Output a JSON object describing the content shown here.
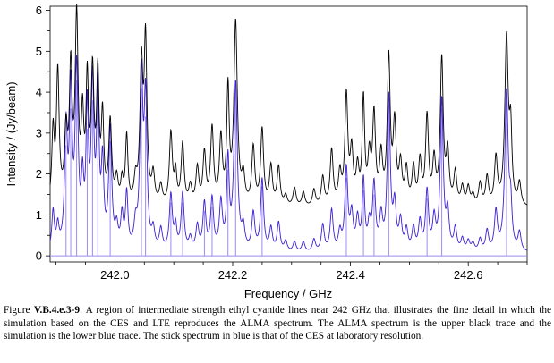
{
  "chart_data": {
    "type": "line",
    "xlabel": "Frequency / GHz",
    "ylabel": "Intensity / (Jy/beam)",
    "xlim": [
      241.89,
      242.7
    ],
    "ylim": [
      -0.15,
      6.1
    ],
    "x_ticks": [
      242.0,
      242.2,
      242.4,
      242.6
    ],
    "x_tick_labels": [
      "242.0",
      "242.2",
      "242.4",
      "242.6"
    ],
    "y_ticks": [
      0,
      1,
      2,
      3,
      4,
      5,
      6
    ],
    "y_tick_labels": [
      "0",
      "1",
      "2",
      "3",
      "4",
      "5",
      "6"
    ],
    "grid": false,
    "colors": {
      "observed": "#000000",
      "simulation": "#3a1fd6",
      "sticks": "#9b8cf2"
    },
    "series": [
      {
        "key": "observed",
        "baseline": 1.15,
        "peaks": [
          [
            241.895,
            2.9,
            0.0025
          ],
          [
            241.903,
            4.35,
            0.0028
          ],
          [
            241.917,
            2.8,
            0.003
          ],
          [
            241.925,
            4.3,
            0.0028
          ],
          [
            241.935,
            5.6,
            0.003
          ],
          [
            241.945,
            3.1,
            0.0025
          ],
          [
            241.953,
            4.0,
            0.0025
          ],
          [
            241.962,
            4.25,
            0.003
          ],
          [
            241.971,
            4.15,
            0.0025
          ],
          [
            241.979,
            3.2,
            0.0025
          ],
          [
            241.992,
            3.15,
            0.003
          ],
          [
            242.003,
            1.75,
            0.003
          ],
          [
            242.012,
            1.7,
            0.0025
          ],
          [
            242.02,
            2.8,
            0.0025
          ],
          [
            242.035,
            1.7,
            0.003
          ],
          [
            242.045,
            4.45,
            0.003
          ],
          [
            242.052,
            5.05,
            0.0028
          ],
          [
            242.065,
            1.85,
            0.003
          ],
          [
            242.078,
            1.6,
            0.003
          ],
          [
            242.095,
            2.9,
            0.003
          ],
          [
            242.103,
            1.9,
            0.0025
          ],
          [
            242.115,
            2.65,
            0.003
          ],
          [
            242.128,
            1.6,
            0.003
          ],
          [
            242.14,
            2.05,
            0.003
          ],
          [
            242.152,
            2.4,
            0.003
          ],
          [
            242.165,
            3.0,
            0.003
          ],
          [
            242.18,
            2.75,
            0.003
          ],
          [
            242.192,
            3.9,
            0.0025
          ],
          [
            242.205,
            5.6,
            0.0035
          ],
          [
            242.218,
            1.8,
            0.003
          ],
          [
            242.235,
            2.55,
            0.003
          ],
          [
            242.25,
            3.0,
            0.003
          ],
          [
            242.265,
            2.1,
            0.003
          ],
          [
            242.278,
            2.1,
            0.003
          ],
          [
            242.29,
            1.4,
            0.003
          ],
          [
            242.305,
            1.6,
            0.003
          ],
          [
            242.32,
            1.5,
            0.003
          ],
          [
            242.338,
            1.55,
            0.003
          ],
          [
            242.353,
            1.85,
            0.003
          ],
          [
            242.368,
            2.5,
            0.003
          ],
          [
            242.382,
            1.9,
            0.003
          ],
          [
            242.393,
            3.8,
            0.003
          ],
          [
            242.402,
            2.4,
            0.003
          ],
          [
            242.412,
            2.0,
            0.003
          ],
          [
            242.422,
            3.7,
            0.0025
          ],
          [
            242.432,
            2.25,
            0.003
          ],
          [
            242.44,
            3.3,
            0.003
          ],
          [
            242.452,
            2.3,
            0.003
          ],
          [
            242.465,
            4.7,
            0.003
          ],
          [
            242.475,
            3.05,
            0.003
          ],
          [
            242.485,
            2.1,
            0.003
          ],
          [
            242.495,
            2.0,
            0.003
          ],
          [
            242.507,
            2.05,
            0.003
          ],
          [
            242.518,
            2.2,
            0.003
          ],
          [
            242.53,
            3.3,
            0.003
          ],
          [
            242.542,
            2.2,
            0.003
          ],
          [
            242.555,
            4.7,
            0.003
          ],
          [
            242.565,
            2.4,
            0.003
          ],
          [
            242.578,
            1.95,
            0.003
          ],
          [
            242.59,
            1.6,
            0.003
          ],
          [
            242.6,
            1.6,
            0.003
          ],
          [
            242.608,
            1.4,
            0.003
          ],
          [
            242.62,
            1.7,
            0.003
          ],
          [
            242.632,
            1.85,
            0.003
          ],
          [
            242.647,
            2.3,
            0.003
          ],
          [
            242.665,
            5.25,
            0.0035
          ],
          [
            242.672,
            2.8,
            0.0025
          ],
          [
            242.687,
            1.7,
            0.003
          ]
        ]
      },
      {
        "key": "simulation",
        "baseline": 0.05,
        "peaks": [
          [
            241.895,
            1.0,
            0.0025
          ],
          [
            241.903,
            0.6,
            0.0025
          ],
          [
            241.917,
            2.9,
            0.0028
          ],
          [
            241.925,
            3.8,
            0.0028
          ],
          [
            241.935,
            4.35,
            0.003
          ],
          [
            241.945,
            1.5,
            0.0025
          ],
          [
            241.953,
            3.3,
            0.0025
          ],
          [
            241.962,
            3.95,
            0.0028
          ],
          [
            241.971,
            3.9,
            0.0025
          ],
          [
            241.979,
            2.0,
            0.0025
          ],
          [
            241.992,
            2.95,
            0.003
          ],
          [
            242.003,
            0.55,
            0.003
          ],
          [
            242.012,
            0.85,
            0.0025
          ],
          [
            242.02,
            1.4,
            0.0025
          ],
          [
            242.035,
            0.6,
            0.003
          ],
          [
            242.045,
            4.2,
            0.003
          ],
          [
            242.052,
            3.6,
            0.0028
          ],
          [
            242.065,
            0.5,
            0.003
          ],
          [
            242.078,
            0.55,
            0.003
          ],
          [
            242.095,
            1.4,
            0.003
          ],
          [
            242.103,
            0.6,
            0.0025
          ],
          [
            242.115,
            1.45,
            0.003
          ],
          [
            242.128,
            0.35,
            0.003
          ],
          [
            242.14,
            0.65,
            0.003
          ],
          [
            242.152,
            1.2,
            0.003
          ],
          [
            242.165,
            1.3,
            0.003
          ],
          [
            242.18,
            1.2,
            0.003
          ],
          [
            242.192,
            2.2,
            0.0025
          ],
          [
            242.205,
            4.15,
            0.0035
          ],
          [
            242.218,
            0.55,
            0.003
          ],
          [
            242.235,
            0.95,
            0.003
          ],
          [
            242.25,
            1.8,
            0.003
          ],
          [
            242.265,
            0.6,
            0.003
          ],
          [
            242.278,
            0.75,
            0.003
          ],
          [
            242.29,
            0.3,
            0.003
          ],
          [
            242.305,
            0.3,
            0.003
          ],
          [
            242.32,
            0.3,
            0.003
          ],
          [
            242.338,
            0.35,
            0.003
          ],
          [
            242.353,
            0.7,
            0.003
          ],
          [
            242.368,
            1.05,
            0.003
          ],
          [
            242.382,
            0.5,
            0.003
          ],
          [
            242.393,
            2.05,
            0.003
          ],
          [
            242.402,
            0.9,
            0.003
          ],
          [
            242.412,
            0.8,
            0.003
          ],
          [
            242.422,
            1.75,
            0.0025
          ],
          [
            242.432,
            0.65,
            0.003
          ],
          [
            242.44,
            1.65,
            0.003
          ],
          [
            242.452,
            0.85,
            0.003
          ],
          [
            242.465,
            3.8,
            0.003
          ],
          [
            242.475,
            1.1,
            0.003
          ],
          [
            242.485,
            0.75,
            0.003
          ],
          [
            242.495,
            0.55,
            0.003
          ],
          [
            242.507,
            0.6,
            0.003
          ],
          [
            242.518,
            0.75,
            0.003
          ],
          [
            242.53,
            1.5,
            0.003
          ],
          [
            242.542,
            0.8,
            0.003
          ],
          [
            242.555,
            3.75,
            0.003
          ],
          [
            242.565,
            0.95,
            0.003
          ],
          [
            242.578,
            0.6,
            0.003
          ],
          [
            242.59,
            0.35,
            0.003
          ],
          [
            242.6,
            0.3,
            0.003
          ],
          [
            242.608,
            0.25,
            0.003
          ],
          [
            242.62,
            0.35,
            0.003
          ],
          [
            242.632,
            0.55,
            0.003
          ],
          [
            242.647,
            1.0,
            0.003
          ],
          [
            242.665,
            3.95,
            0.0035
          ],
          [
            242.672,
            1.0,
            0.0025
          ],
          [
            242.687,
            0.5,
            0.003
          ]
        ]
      }
    ],
    "sticks": [
      [
        241.917,
        2.7
      ],
      [
        241.925,
        3.6
      ],
      [
        241.935,
        4.3
      ],
      [
        241.953,
        3.1
      ],
      [
        241.962,
        3.8
      ],
      [
        241.971,
        3.8
      ],
      [
        241.992,
        2.8
      ],
      [
        242.045,
        4.1
      ],
      [
        242.052,
        3.4
      ],
      [
        242.095,
        1.3
      ],
      [
        242.115,
        1.3
      ],
      [
        242.152,
        1.1
      ],
      [
        242.165,
        1.2
      ],
      [
        242.192,
        2.1
      ],
      [
        242.205,
        4.1
      ],
      [
        242.25,
        1.7
      ],
      [
        242.393,
        1.9
      ],
      [
        242.422,
        1.6
      ],
      [
        242.44,
        1.5
      ],
      [
        242.465,
        3.7
      ],
      [
        242.53,
        1.4
      ],
      [
        242.555,
        3.6
      ],
      [
        242.665,
        3.9
      ]
    ]
  },
  "caption": {
    "label": "Figure ",
    "figure_id": "V.B.4.e.3-9",
    "text": ".  A region of intermediate  strength ethyl cyanide lines near 242  GHz  that illustrates the fine detail in which the simulation  based on the CES  and LTE  reproduces the ALMA spectrum.  The ALMA spectrum is the upper black trace and the simulation is the lower blue trace.  The stick spectrum in blue is that of the CES  at laboratory resolution."
  }
}
